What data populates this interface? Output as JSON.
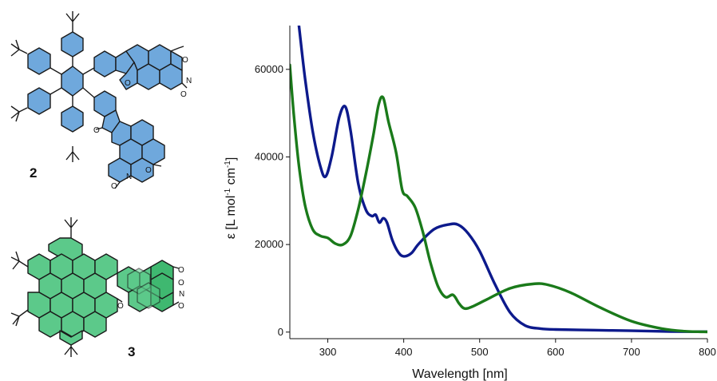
{
  "compounds": [
    {
      "label": "2",
      "fill": "#6fa8dc"
    },
    {
      "label": "3",
      "fill": "#5cc98a"
    }
  ],
  "atoms": {
    "oxygen": "O",
    "nitrogen": "N"
  },
  "chart_data": {
    "type": "line",
    "xlabel": "Wavelength [nm]",
    "ylabel_parts": [
      "ε [L mol",
      "-1",
      " cm",
      "-1",
      "]"
    ],
    "xlim": [
      250,
      800
    ],
    "ylim": [
      -1500,
      70000
    ],
    "xticks": [
      300,
      400,
      500,
      600,
      700,
      800
    ],
    "yticks": [
      0,
      20000,
      40000,
      60000
    ],
    "grid": false,
    "series": [
      {
        "color": "#0d1a8c",
        "x": [
          262,
          270,
          280,
          290,
          297,
          305,
          315,
          323,
          330,
          340,
          350,
          358,
          363,
          368,
          373,
          378,
          385,
          393,
          400,
          410,
          420,
          440,
          460,
          472,
          485,
          500,
          520,
          540,
          560,
          580,
          600,
          650,
          700,
          750,
          800
        ],
        "y": [
          70000,
          58000,
          46000,
          38000,
          35500,
          40000,
          49000,
          51500,
          46000,
          34000,
          28000,
          26500,
          26800,
          25000,
          26000,
          25000,
          21000,
          18200,
          17300,
          18000,
          20200,
          23500,
          24600,
          24500,
          22500,
          18500,
          11000,
          4500,
          1500,
          800,
          600,
          450,
          300,
          150,
          80
        ]
      },
      {
        "color": "#1a7a1a",
        "x": [
          250,
          255,
          262,
          270,
          280,
          290,
          300,
          310,
          320,
          330,
          340,
          350,
          360,
          367,
          373,
          380,
          390,
          398,
          405,
          415,
          425,
          435,
          445,
          455,
          465,
          473,
          480,
          490,
          510,
          540,
          570,
          590,
          620,
          660,
          700,
          740,
          770,
          800
        ],
        "y": [
          61000,
          50000,
          38000,
          29000,
          23500,
          22000,
          21500,
          20200,
          20000,
          22000,
          28000,
          36000,
          45000,
          52000,
          53500,
          48000,
          41000,
          32500,
          31000,
          28500,
          23000,
          16000,
          10500,
          8000,
          8500,
          6500,
          5400,
          5800,
          7500,
          10000,
          11000,
          10800,
          9000,
          5500,
          2500,
          800,
          200,
          50
        ]
      }
    ]
  }
}
